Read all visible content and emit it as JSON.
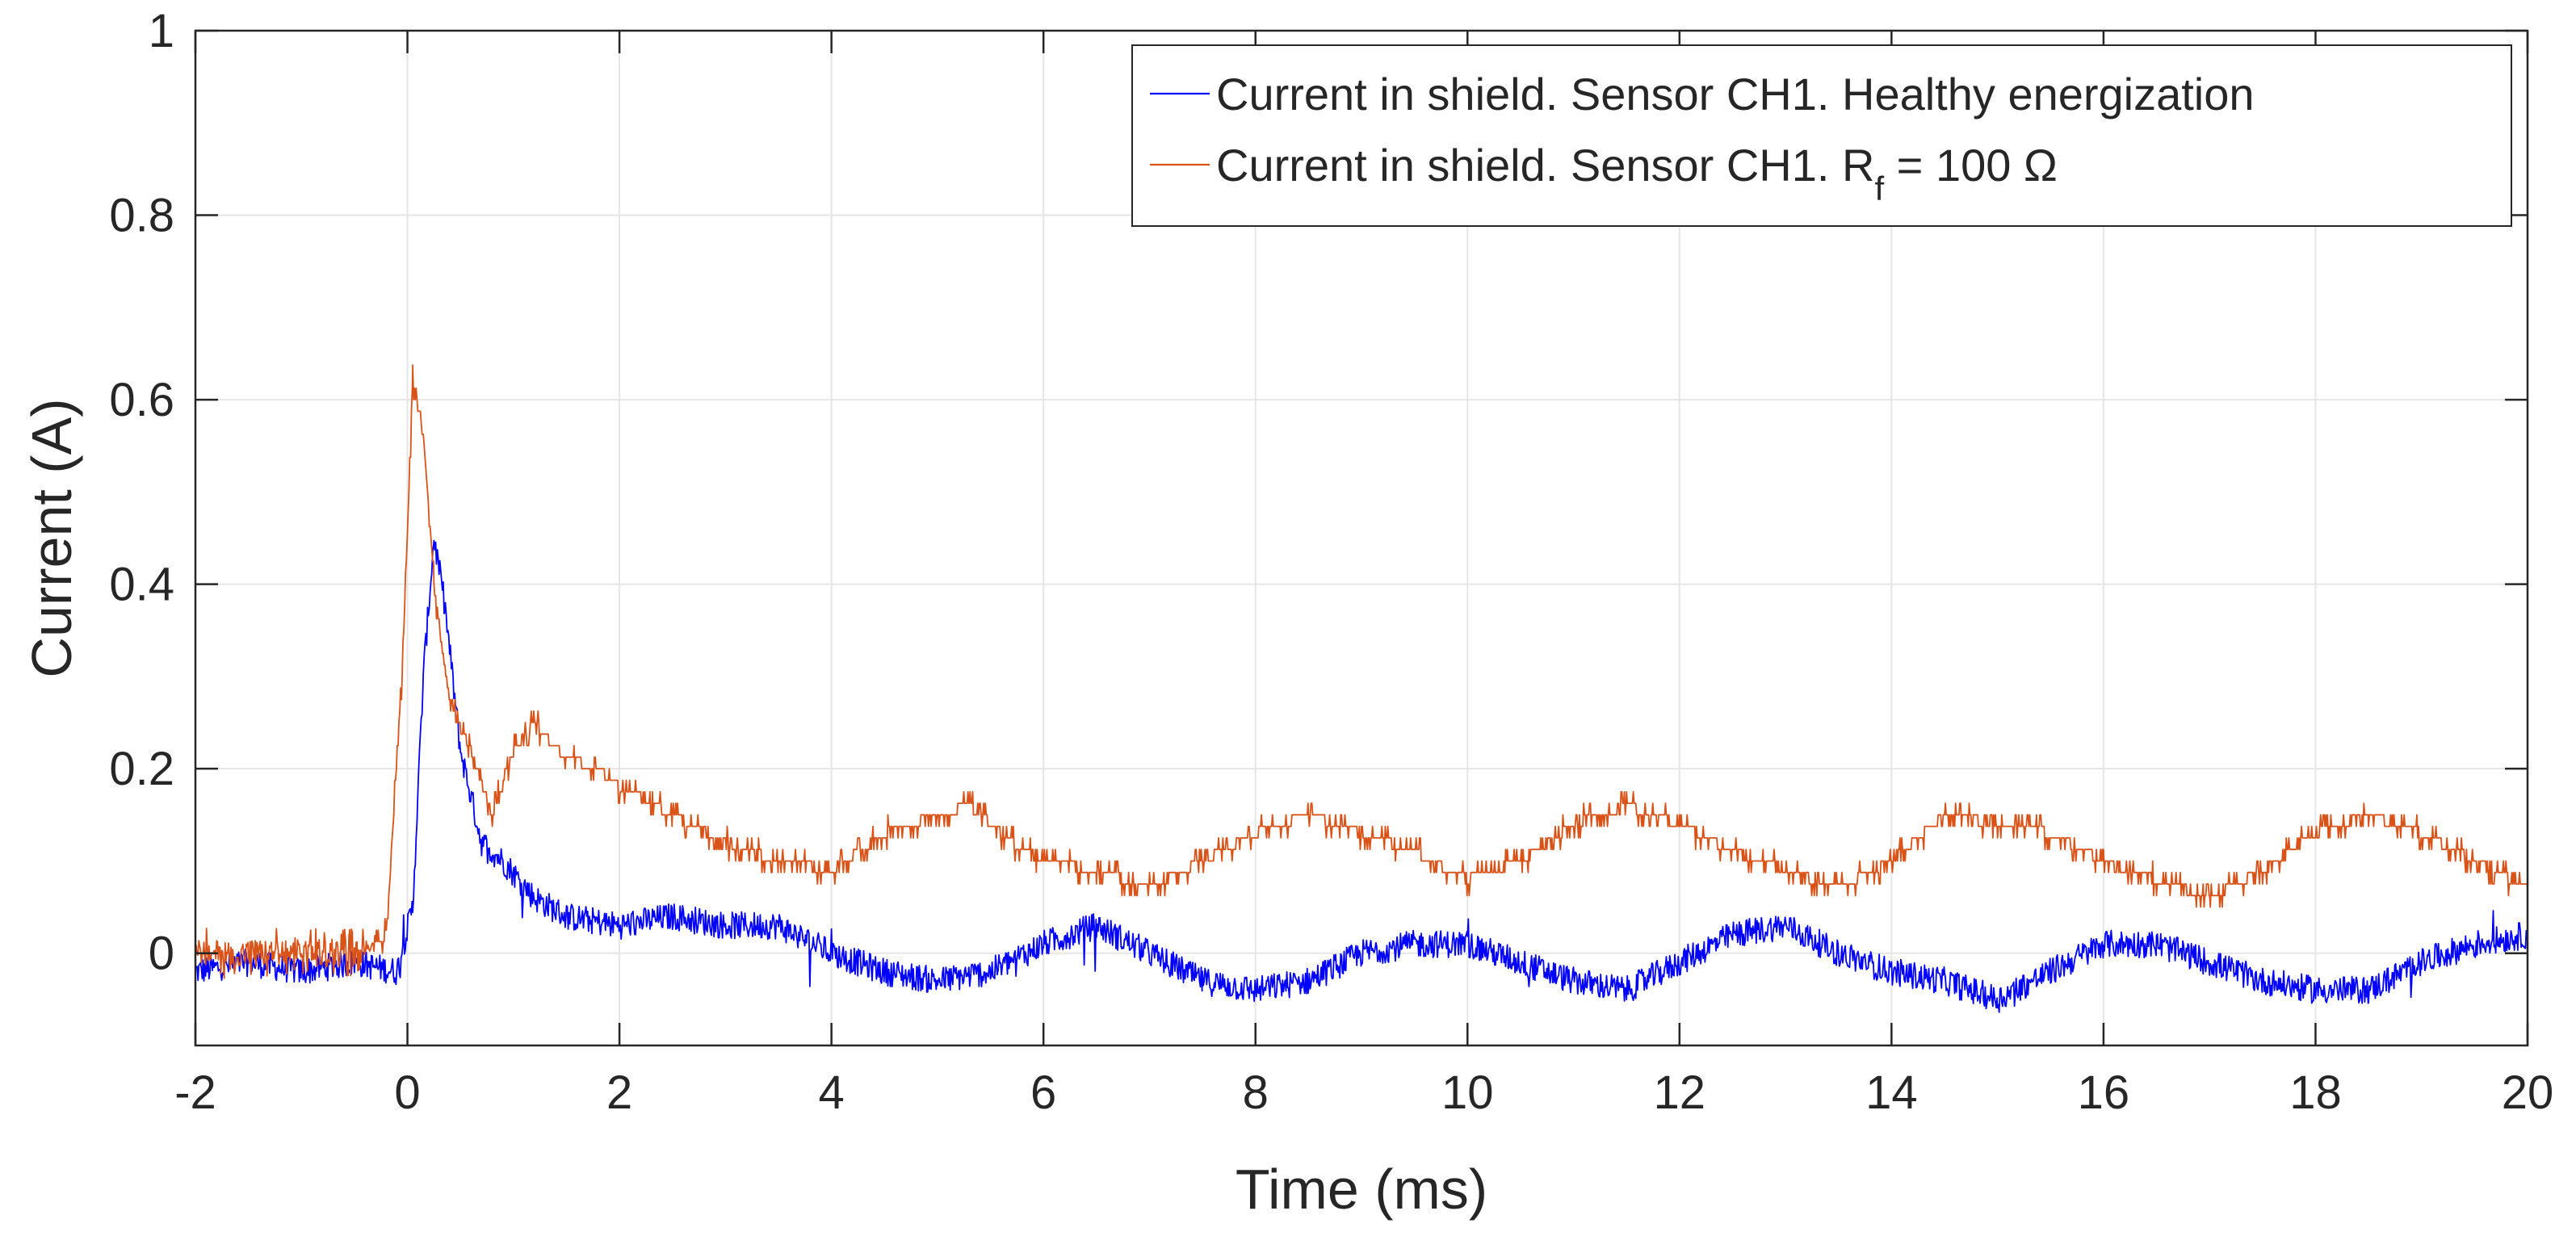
{
  "chart_data": {
    "type": "line",
    "title": "",
    "xlabel": "Time (ms)",
    "ylabel": "Current (A)",
    "xlim": [
      -2,
      20
    ],
    "ylim": [
      -0.1,
      1
    ],
    "xticks": [
      -2,
      0,
      2,
      4,
      6,
      8,
      10,
      12,
      14,
      16,
      18,
      20
    ],
    "yticks": [
      0,
      0.2,
      0.4,
      0.6,
      0.8,
      1
    ],
    "ytick_labels": [
      "0",
      "0.2",
      "0.4",
      "0.6",
      "0.8",
      "1"
    ],
    "grid": true,
    "legend_position": "top-right",
    "series": [
      {
        "name": "Current in shield. Sensor CH1. Healthy energization",
        "color": "#0000ff",
        "x": [
          -2,
          -1.5,
          -1,
          -0.5,
          -0.1,
          0.05,
          0.15,
          0.25,
          0.35,
          0.5,
          0.7,
          0.9,
          1.2,
          1.5,
          2,
          2.5,
          3,
          3.5,
          4,
          4.5,
          5,
          5.5,
          6,
          6.5,
          7,
          7.5,
          8,
          8.5,
          9,
          9.5,
          10,
          10.5,
          11,
          11.5,
          12,
          12.5,
          13,
          13.5,
          14,
          14.5,
          15,
          15.5,
          16,
          16.5,
          17,
          17.5,
          18,
          18.5,
          19,
          19.5,
          20
        ],
        "y": [
          -0.02,
          -0.01,
          -0.02,
          -0.01,
          -0.02,
          0.05,
          0.3,
          0.45,
          0.38,
          0.22,
          0.12,
          0.1,
          0.06,
          0.04,
          0.03,
          0.04,
          0.03,
          0.03,
          0.0,
          -0.02,
          -0.03,
          -0.02,
          0.01,
          0.03,
          0.0,
          -0.03,
          -0.04,
          -0.03,
          0.0,
          0.01,
          0.01,
          -0.01,
          -0.03,
          -0.04,
          -0.01,
          0.02,
          0.03,
          0.0,
          -0.02,
          -0.03,
          -0.05,
          -0.02,
          0.01,
          0.01,
          -0.01,
          -0.03,
          -0.04,
          -0.04,
          -0.01,
          0.01,
          0.02
        ]
      },
      {
        "name": "Current in shield. Sensor CH1. R",
        "name_subscript": "f",
        "name_suffix": " = 100 Ω",
        "color": "#d95319",
        "x": [
          -2,
          -1.5,
          -1,
          -0.5,
          -0.2,
          -0.05,
          0.05,
          0.15,
          0.25,
          0.4,
          0.6,
          0.8,
          1.0,
          1.2,
          1.5,
          1.8,
          2,
          2.5,
          3,
          3.5,
          4,
          4.5,
          5,
          5.3,
          5.7,
          6,
          6.5,
          7,
          7.5,
          8,
          8.5,
          9,
          9.5,
          10,
          10.5,
          11,
          11.5,
          12,
          12.5,
          13,
          13.5,
          14,
          14.5,
          15,
          15.5,
          16,
          16.5,
          17,
          17.5,
          18,
          18.5,
          19,
          19.5,
          20
        ],
        "y": [
          0.0,
          0.0,
          0.0,
          0.0,
          0.02,
          0.3,
          0.62,
          0.56,
          0.4,
          0.27,
          0.22,
          0.15,
          0.22,
          0.25,
          0.21,
          0.2,
          0.18,
          0.15,
          0.12,
          0.1,
          0.09,
          0.13,
          0.15,
          0.16,
          0.12,
          0.1,
          0.09,
          0.07,
          0.1,
          0.13,
          0.15,
          0.13,
          0.11,
          0.08,
          0.1,
          0.14,
          0.16,
          0.14,
          0.11,
          0.09,
          0.07,
          0.1,
          0.15,
          0.14,
          0.13,
          0.1,
          0.08,
          0.06,
          0.09,
          0.13,
          0.15,
          0.13,
          0.1,
          0.07
        ]
      }
    ]
  }
}
